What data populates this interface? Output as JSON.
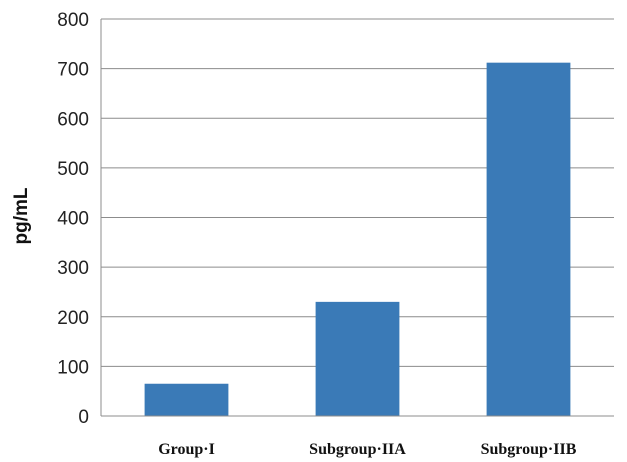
{
  "chart_data": {
    "type": "bar",
    "title": "",
    "xlabel": "",
    "ylabel": "pg/mL",
    "categories": [
      "Group·I",
      "Subgroup·IIA",
      "Subgroup·IIB"
    ],
    "values": [
      65,
      230,
      712
    ],
    "ylim": [
      0,
      800
    ],
    "yticks": [
      0,
      100,
      200,
      300,
      400,
      500,
      600,
      700,
      800
    ],
    "grid": true,
    "legend": "none",
    "colors": {
      "bar": "#3a7ab7",
      "grid": "#8c8c8c",
      "axis": "#8c8c8c"
    }
  }
}
